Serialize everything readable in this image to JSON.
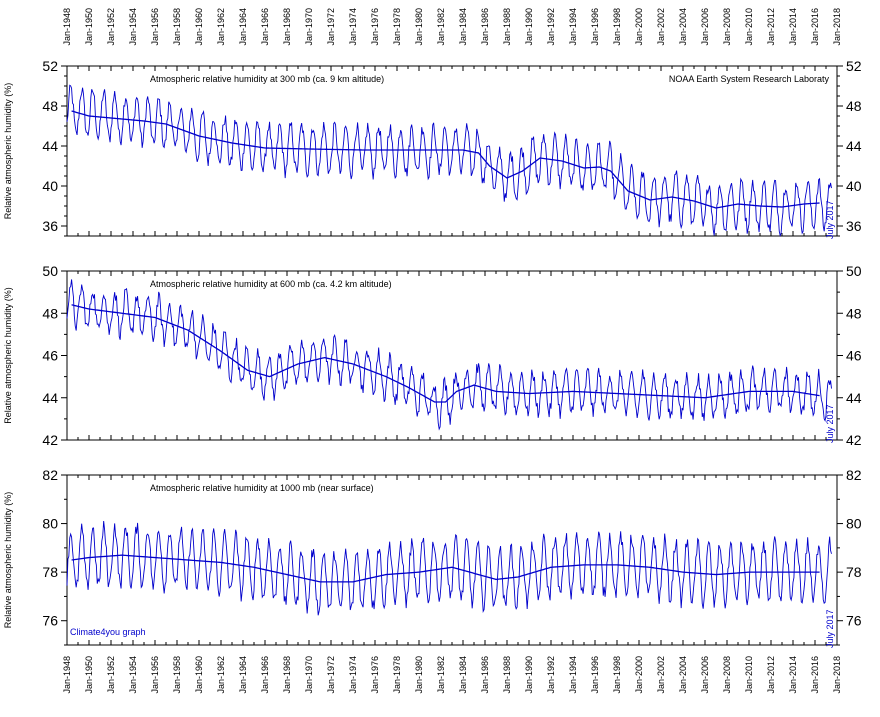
{
  "date_labels": [
    "Jan-1948",
    "Jan-1950",
    "Jan-1952",
    "Jan-1954",
    "Jan-1956",
    "Jan-1958",
    "Jan-1960",
    "Jan-1962",
    "Jan-1964",
    "Jan-1966",
    "Jan-1968",
    "Jan-1970",
    "Jan-1972",
    "Jan-1974",
    "Jan-1976",
    "Jan-1978",
    "Jan-1980",
    "Jan-1982",
    "Jan-1984",
    "Jan-1986",
    "Jan-1988",
    "Jan-1990",
    "Jan-1992",
    "Jan-1994",
    "Jan-1996",
    "Jan-1998",
    "Jan-2000",
    "Jan-2002",
    "Jan-2004",
    "Jan-2006",
    "Jan-2008",
    "Jan-2010",
    "Jan-2012",
    "Jan-2014",
    "Jan-2016",
    "Jan-2018"
  ],
  "credit": "Climate4you graph",
  "source": "NOAA Earth System Research Laboraty",
  "ylabel": "Relative atmospheric humidity (%)",
  "end_label": "July 2017",
  "colors": {
    "series": "#0000cc",
    "axis": "#000000",
    "credit": "#0000cc"
  },
  "chart_data": [
    {
      "type": "line",
      "title": "Atmospheric relative humidity at 300 mb (ca. 9 km altitude)",
      "ylabel": "Relative atmospheric humidity (%)",
      "xlim": [
        "1948-01",
        "2018-01"
      ],
      "ylim": [
        35,
        52
      ],
      "yticks": [
        36,
        40,
        44,
        48,
        52
      ],
      "x_end": "2017-07",
      "series": [
        {
          "kind": "monthly",
          "seasonal_amplitude": 2.3,
          "noise": 0.7,
          "x": [
            "1948-01",
            "1950-01",
            "1955-01",
            "1957-01",
            "1960-01",
            "1963-01",
            "1966-01",
            "1970-01",
            "1975-01",
            "1980-01",
            "1984-01",
            "1985-06",
            "1986-06",
            "1988-01",
            "1989-06",
            "1991-01",
            "1993-01",
            "1995-01",
            "1996-06",
            "1997-06",
            "1999-01",
            "2001-01",
            "2003-01",
            "2005-01",
            "2007-01",
            "2009-01",
            "2011-01",
            "2013-01",
            "2015-01",
            "2017-07"
          ],
          "y": [
            47.5,
            47.3,
            46.5,
            46.2,
            45.0,
            44.3,
            43.8,
            43.7,
            43.6,
            43.6,
            43.6,
            43.3,
            42.0,
            40.8,
            41.5,
            42.8,
            42.5,
            41.8,
            41.9,
            41.5,
            39.5,
            38.6,
            38.9,
            38.5,
            37.8,
            38.2,
            38.0,
            37.9,
            38.2,
            38.0
          ]
        },
        {
          "kind": "running-average",
          "x": [
            "1948-06",
            "1950-01",
            "1955-01",
            "1957-01",
            "1960-01",
            "1963-01",
            "1966-01",
            "1970-01",
            "1975-01",
            "1980-01",
            "1984-01",
            "1985-06",
            "1986-06",
            "1988-01",
            "1989-06",
            "1991-01",
            "1993-01",
            "1995-01",
            "1996-06",
            "1997-06",
            "1999-01",
            "2001-01",
            "2003-01",
            "2005-01",
            "2007-01",
            "2009-01",
            "2011-01",
            "2013-01",
            "2015-01",
            "2016-06"
          ],
          "y": [
            47.5,
            47.0,
            46.5,
            46.2,
            45.0,
            44.3,
            43.8,
            43.7,
            43.6,
            43.6,
            43.6,
            43.3,
            42.0,
            40.8,
            41.5,
            42.8,
            42.5,
            41.8,
            41.9,
            41.5,
            39.5,
            38.6,
            38.9,
            38.5,
            37.8,
            38.2,
            38.0,
            37.9,
            38.2,
            38.3
          ]
        }
      ]
    },
    {
      "type": "line",
      "title": "Atmospheric relative humidity at 600 mb (ca. 4.2 km altitude)",
      "ylabel": "Relative atmospheric humidity (%)",
      "xlim": [
        "1948-01",
        "2018-01"
      ],
      "ylim": [
        42,
        50
      ],
      "yticks": [
        42,
        44,
        46,
        48,
        50
      ],
      "x_end": "2017-07",
      "series": [
        {
          "kind": "monthly",
          "seasonal_amplitude": 0.95,
          "noise": 0.35,
          "x": [
            "1948-01",
            "1950-01",
            "1953-01",
            "1956-01",
            "1959-01",
            "1962-01",
            "1964-06",
            "1966-06",
            "1969-01",
            "1971-06",
            "1974-01",
            "1977-01",
            "1979-01",
            "1981-06",
            "1982-06",
            "1983-06",
            "1985-01",
            "1987-01",
            "1990-01",
            "1994-01",
            "1998-01",
            "2002-01",
            "2006-01",
            "2010-01",
            "2014-01",
            "2017-07"
          ],
          "y": [
            48.5,
            48.2,
            48.0,
            47.8,
            47.2,
            46.2,
            45.3,
            45.0,
            45.6,
            45.9,
            45.6,
            45.0,
            44.5,
            43.8,
            43.8,
            44.3,
            44.6,
            44.3,
            44.2,
            44.3,
            44.2,
            44.1,
            44.0,
            44.3,
            44.3,
            44.0
          ]
        },
        {
          "kind": "running-average",
          "x": [
            "1948-06",
            "1950-01",
            "1953-01",
            "1956-01",
            "1959-01",
            "1962-01",
            "1964-06",
            "1966-06",
            "1969-01",
            "1971-06",
            "1974-01",
            "1977-01",
            "1979-01",
            "1981-06",
            "1982-06",
            "1983-06",
            "1985-01",
            "1987-01",
            "1990-01",
            "1994-01",
            "1998-01",
            "2002-01",
            "2006-01",
            "2010-01",
            "2014-01",
            "2016-06"
          ],
          "y": [
            48.4,
            48.2,
            48.0,
            47.8,
            47.2,
            46.2,
            45.3,
            45.0,
            45.6,
            45.9,
            45.6,
            45.0,
            44.5,
            43.8,
            43.8,
            44.3,
            44.6,
            44.3,
            44.2,
            44.3,
            44.2,
            44.1,
            44.0,
            44.3,
            44.3,
            44.1
          ]
        }
      ]
    },
    {
      "type": "line",
      "title": "Atmospheric relative humidity at 1000 mb (near surface)",
      "ylabel": "Relative atmospheric humidity (%)",
      "xlim": [
        "1948-01",
        "2018-01"
      ],
      "ylim": [
        75,
        82
      ],
      "yticks": [
        76,
        78,
        80,
        82
      ],
      "x_end": "2017-07",
      "series": [
        {
          "kind": "monthly",
          "seasonal_amplitude": 1.2,
          "noise": 0.3,
          "x": [
            "1948-01",
            "1950-01",
            "1953-01",
            "1956-01",
            "1959-01",
            "1962-01",
            "1965-01",
            "1968-01",
            "1971-01",
            "1974-01",
            "1977-01",
            "1980-01",
            "1983-01",
            "1985-06",
            "1987-01",
            "1989-01",
            "1992-01",
            "1995-01",
            "1998-01",
            "2001-01",
            "2004-01",
            "2007-01",
            "2010-01",
            "2013-01",
            "2016-01",
            "2017-07"
          ],
          "y": [
            78.4,
            78.6,
            78.7,
            78.6,
            78.5,
            78.4,
            78.2,
            77.9,
            77.6,
            77.6,
            77.9,
            78.0,
            78.2,
            77.9,
            77.7,
            77.8,
            78.2,
            78.3,
            78.3,
            78.2,
            78.0,
            77.9,
            78.0,
            78.0,
            78.0,
            78.0
          ]
        },
        {
          "kind": "running-average",
          "x": [
            "1948-06",
            "1950-01",
            "1953-01",
            "1956-01",
            "1959-01",
            "1962-01",
            "1965-01",
            "1968-01",
            "1971-01",
            "1974-01",
            "1977-01",
            "1980-01",
            "1983-01",
            "1985-06",
            "1987-01",
            "1989-01",
            "1992-01",
            "1995-01",
            "1998-01",
            "2001-01",
            "2004-01",
            "2007-01",
            "2010-01",
            "2013-01",
            "2016-06"
          ],
          "y": [
            78.5,
            78.6,
            78.7,
            78.6,
            78.5,
            78.4,
            78.2,
            77.9,
            77.6,
            77.6,
            77.9,
            78.0,
            78.2,
            77.9,
            77.7,
            77.8,
            78.2,
            78.3,
            78.3,
            78.2,
            78.0,
            77.9,
            78.0,
            78.0,
            78.0
          ]
        }
      ]
    }
  ]
}
